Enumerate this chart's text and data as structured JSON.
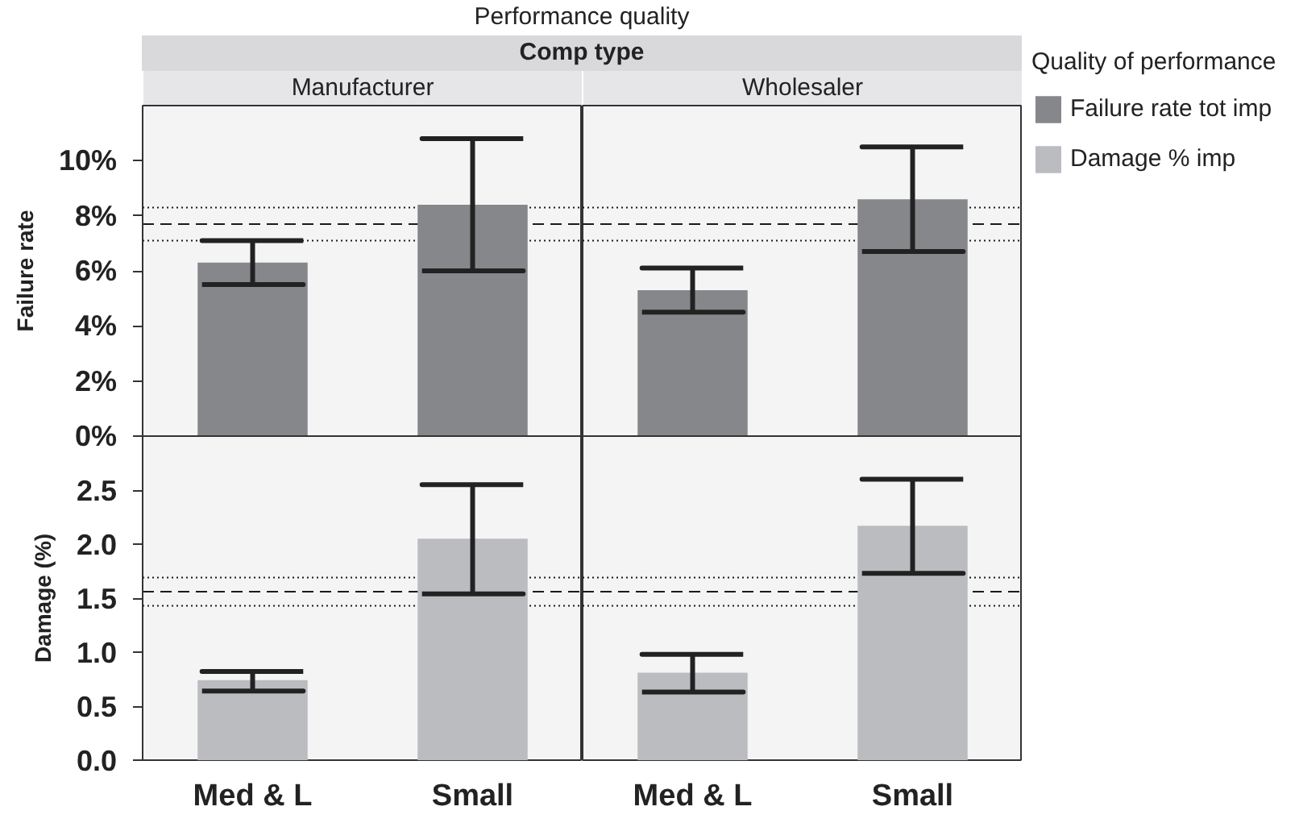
{
  "chart_data": [
    {
      "type": "bar",
      "title": "Manufacturer",
      "ylabel": "Failure rate",
      "annotations": [
        "Performance quality",
        "Comp type"
      ],
      "categories": [
        "Med & L",
        "Small"
      ],
      "series": [
        {
          "name": "Failure rate tot imp",
          "color": "#86878b",
          "values": [
            6.3,
            8.4
          ],
          "errors": [
            [
              5.5,
              7.1
            ],
            [
              6.0,
              10.8
            ]
          ]
        }
      ],
      "ylim": [
        0,
        12
      ],
      "yticks": [
        {
          "value": 0,
          "label": "0%"
        },
        {
          "value": 2,
          "label": "2%"
        },
        {
          "value": 4,
          "label": "4%"
        },
        {
          "value": 6,
          "label": "6%"
        },
        {
          "value": 8,
          "label": "8%"
        },
        {
          "value": 10,
          "label": "10%"
        }
      ],
      "ref_lines": [
        {
          "axis": "y",
          "value": 8.3,
          "line_style": "dotted",
          "color": "#1a1a1a"
        },
        {
          "axis": "y",
          "value": 7.7,
          "line_style": "dashed",
          "color": "#1a1a1a"
        },
        {
          "axis": "y",
          "value": 7.1,
          "line_style": "dotted",
          "color": "#1a1a1a"
        }
      ],
      "tick_labels": "y"
    },
    {
      "type": "bar",
      "title": "Wholesaler",
      "categories": [
        "Med & L",
        "Small"
      ],
      "series": [
        {
          "name": "Failure rate tot imp",
          "color": "#86878b",
          "values": [
            5.3,
            8.6
          ],
          "errors": [
            [
              4.5,
              6.1
            ],
            [
              6.7,
              10.5
            ]
          ]
        }
      ],
      "ylim": [
        0,
        12
      ],
      "ref_lines": [
        {
          "axis": "y",
          "value": 8.3,
          "line_style": "dotted",
          "color": "#1a1a1a"
        },
        {
          "axis": "y",
          "value": 7.7,
          "line_style": "dashed",
          "color": "#1a1a1a"
        },
        {
          "axis": "y",
          "value": 7.1,
          "line_style": "dotted",
          "color": "#1a1a1a"
        }
      ],
      "tick_labels": false,
      "legend": "right",
      "legend_title": "Quality of performance"
    },
    {
      "type": "bar",
      "ylabel": "Damage (%)",
      "categories": [
        "Med & L",
        "Small"
      ],
      "series": [
        {
          "name": "Damage % imp",
          "color": "#bbbcc0",
          "values": [
            0.74,
            2.05
          ],
          "errors": [
            [
              0.64,
              0.82
            ],
            [
              1.54,
              2.55
            ]
          ]
        }
      ],
      "ylim": [
        0,
        3
      ],
      "yticks": [
        {
          "value": 0,
          "label": "0.0"
        },
        0.5,
        {
          "value": 1,
          "label": "1.0"
        },
        1.5,
        {
          "value": 2,
          "label": "2.0"
        },
        2.5
      ],
      "ref_lines": [
        {
          "axis": "y",
          "value": 1.69,
          "line_style": "dotted",
          "color": "#1a1a1a"
        },
        {
          "axis": "y",
          "value": 1.56,
          "line_style": "dashed",
          "color": "#1a1a1a"
        },
        {
          "axis": "y",
          "value": 1.43,
          "line_style": "dotted",
          "color": "#1a1a1a"
        }
      ]
    },
    {
      "type": "bar",
      "categories": [
        "Med & L",
        "Small"
      ],
      "series": [
        {
          "name": "Damage % imp",
          "color": "#bbbcc0",
          "values": [
            0.81,
            2.17
          ],
          "errors": [
            [
              0.63,
              0.98
            ],
            [
              1.73,
              2.6
            ]
          ]
        }
      ],
      "ylim": [
        0,
        3
      ],
      "ref_lines": [
        {
          "axis": "y",
          "value": 1.69,
          "line_style": "dotted",
          "color": "#1a1a1a"
        },
        {
          "axis": "y",
          "value": 1.56,
          "line_style": "dashed",
          "color": "#1a1a1a"
        },
        {
          "axis": "y",
          "value": 1.43,
          "line_style": "dotted",
          "color": "#1a1a1a"
        }
      ],
      "tick_labels": "x"
    }
  ]
}
